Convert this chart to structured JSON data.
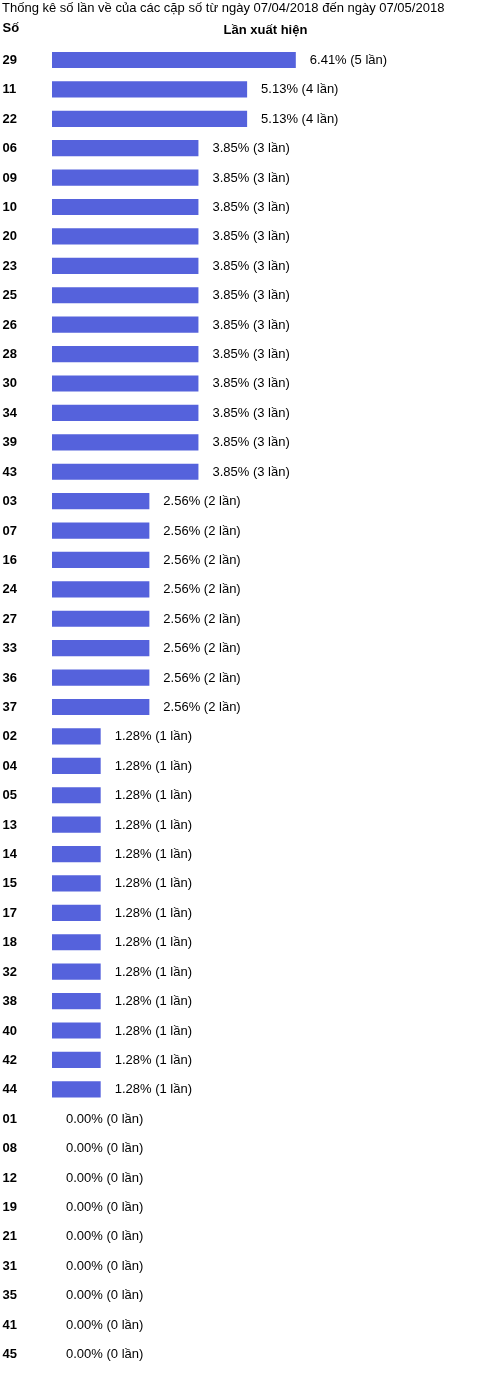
{
  "chart_data": {
    "type": "bar",
    "orientation": "horizontal",
    "title": "Thống kê số lần về của các cặp số từ ngày 07/04/2018 đến ngày 07/05/2018",
    "xlabel": "Lần xuất hiện",
    "ylabel": "Số",
    "categories": [
      "29",
      "11",
      "22",
      "06",
      "09",
      "10",
      "20",
      "23",
      "25",
      "26",
      "28",
      "30",
      "34",
      "39",
      "43",
      "03",
      "07",
      "16",
      "24",
      "27",
      "33",
      "36",
      "37",
      "02",
      "04",
      "05",
      "13",
      "14",
      "15",
      "17",
      "18",
      "32",
      "38",
      "40",
      "42",
      "44",
      "01",
      "08",
      "12",
      "19",
      "21",
      "31",
      "35",
      "41",
      "45"
    ],
    "values": [
      6.41,
      5.13,
      5.13,
      3.85,
      3.85,
      3.85,
      3.85,
      3.85,
      3.85,
      3.85,
      3.85,
      3.85,
      3.85,
      3.85,
      3.85,
      2.56,
      2.56,
      2.56,
      2.56,
      2.56,
      2.56,
      2.56,
      2.56,
      1.28,
      1.28,
      1.28,
      1.28,
      1.28,
      1.28,
      1.28,
      1.28,
      1.28,
      1.28,
      1.28,
      1.28,
      1.28,
      0,
      0,
      0,
      0,
      0,
      0,
      0,
      0,
      0
    ],
    "value_labels": [
      "6.41% (5 lần)",
      "5.13% (4 lần)",
      "5.13% (4 lần)",
      "3.85% (3 lần)",
      "3.85% (3 lần)",
      "3.85% (3 lần)",
      "3.85% (3 lần)",
      "3.85% (3 lần)",
      "3.85% (3 lần)",
      "3.85% (3 lần)",
      "3.85% (3 lần)",
      "3.85% (3 lần)",
      "3.85% (3 lần)",
      "3.85% (3 lần)",
      "3.85% (3 lần)",
      "2.56% (2 lần)",
      "2.56% (2 lần)",
      "2.56% (2 lần)",
      "2.56% (2 lần)",
      "2.56% (2 lần)",
      "2.56% (2 lần)",
      "2.56% (2 lần)",
      "2.56% (2 lần)",
      "1.28% (1 lần)",
      "1.28% (1 lần)",
      "1.28% (1 lần)",
      "1.28% (1 lần)",
      "1.28% (1 lần)",
      "1.28% (1 lần)",
      "1.28% (1 lần)",
      "1.28% (1 lần)",
      "1.28% (1 lần)",
      "1.28% (1 lần)",
      "1.28% (1 lần)",
      "1.28% (1 lần)",
      "1.28% (1 lần)",
      "0.00% (0 lần)",
      "0.00% (0 lần)",
      "0.00% (0 lần)",
      "0.00% (0 lần)",
      "0.00% (0 lần)",
      "0.00% (0 lần)",
      "0.00% (0 lần)",
      "0.00% (0 lần)",
      "0.00% (0 lần)"
    ],
    "color": "#5562dc",
    "xlim": [
      0,
      11.2
    ],
    "tick_labels": "y",
    "grid": false
  }
}
